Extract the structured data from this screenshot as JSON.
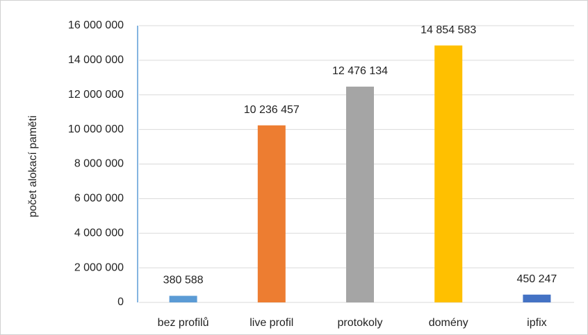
{
  "chart_data": {
    "type": "bar",
    "y_label": "počet alokací paměti",
    "categories": [
      "bez profilů",
      "live profil",
      "protokoly",
      "domény",
      "ipfix"
    ],
    "values": [
      380588,
      10236457,
      12476134,
      14854583,
      450247
    ],
    "value_labels": [
      "380 588",
      "10 236 457",
      "12 476 134",
      "14 854 583",
      "450 247"
    ],
    "colors": [
      "#5b9bd5",
      "#ed7d31",
      "#a5a5a5",
      "#ffc000",
      "#4472c4"
    ],
    "ylim": [
      0,
      16000000
    ],
    "yticks": [
      0,
      {
        "value": 2000000,
        "label": "2 000 000"
      },
      {
        "value": 4000000,
        "label": "4 000 000"
      },
      {
        "value": 6000000,
        "label": "6 000 000"
      },
      {
        "value": 8000000,
        "label": "8 000 000"
      },
      {
        "value": 10000000,
        "label": "10 000 000"
      },
      {
        "value": 12000000,
        "label": "12 000 000"
      },
      {
        "value": 14000000,
        "label": "14 000 000"
      },
      {
        "value": 16000000,
        "label": "16 000 000"
      }
    ],
    "grid": true
  }
}
